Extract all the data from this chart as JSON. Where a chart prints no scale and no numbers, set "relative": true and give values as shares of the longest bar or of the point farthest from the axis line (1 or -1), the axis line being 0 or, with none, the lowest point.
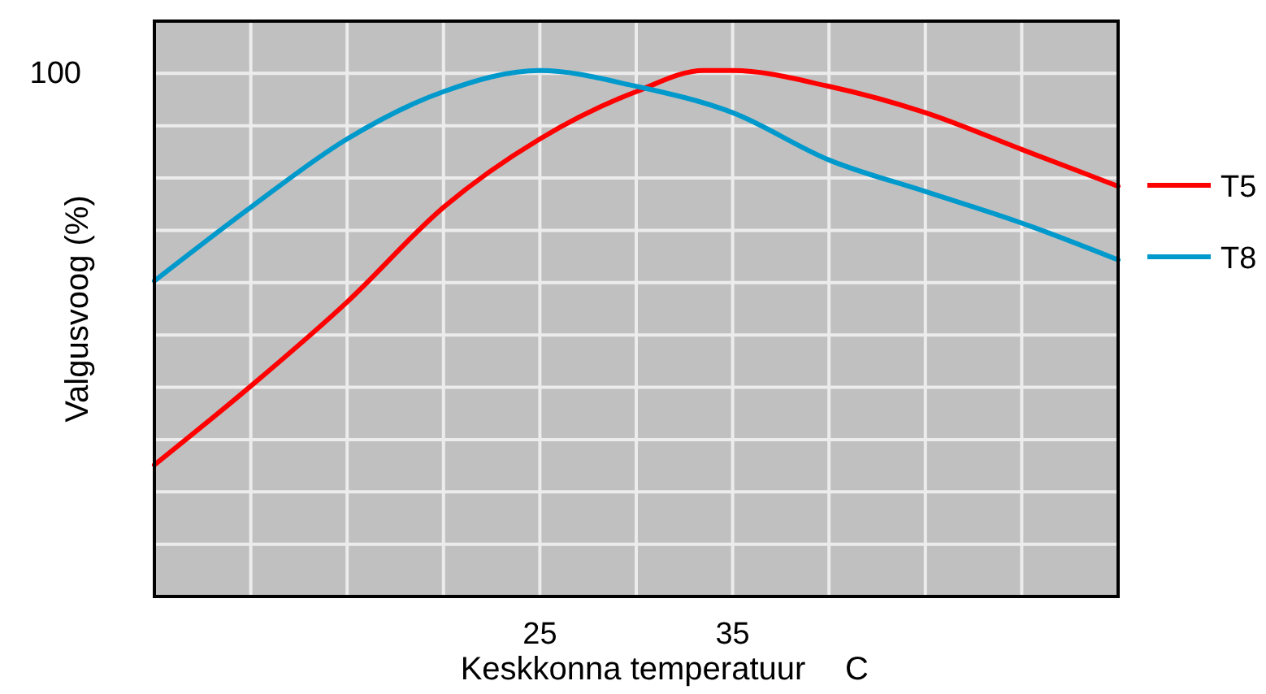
{
  "chart_data": {
    "type": "line",
    "relative": true,
    "xlabel": "Keskkonna temperatuur",
    "ylabel": "Valgusvoog (%)",
    "x": [
      5,
      10,
      15,
      20,
      25,
      30,
      33.5,
      35,
      40,
      45,
      50,
      55
    ],
    "xlim": [
      5,
      55
    ],
    "xticks": [
      {
        "value": 10,
        "label": null
      },
      {
        "value": 15,
        "label": null
      },
      {
        "value": 20,
        "label": null
      },
      25,
      {
        "value": 30,
        "label": null
      },
      35,
      {
        "value": 40,
        "label": null
      },
      {
        "value": 45,
        "label": null
      },
      {
        "value": 50,
        "label": null
      }
    ],
    "series": [
      {
        "name": "T5",
        "color": "#ff0000",
        "values": [
          0.25,
          0.4,
          0.56,
          0.74,
          0.87,
          0.96,
          1,
          1,
          0.97,
          0.92,
          0.85,
          0.78
        ]
      },
      {
        "name": "T8",
        "color": "#0099cc",
        "x": [
          5,
          10,
          15,
          20,
          25,
          30,
          35,
          40,
          45,
          50,
          55
        ],
        "values": [
          0.6,
          0.74,
          0.87,
          0.96,
          1,
          0.97,
          0.92,
          0.83,
          0.77,
          0.71,
          0.64
        ]
      }
    ],
    "annotations": [
      "100",
      "C"
    ],
    "grid": true,
    "legend": "right",
    "marker": "none",
    "line_style": "solid"
  }
}
